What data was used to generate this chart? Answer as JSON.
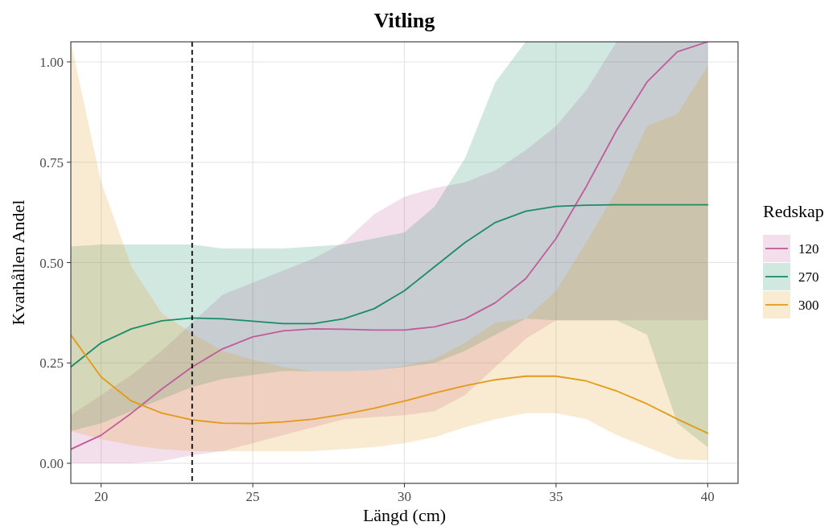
{
  "chart_data": {
    "type": "line",
    "title": "Vitling",
    "xlabel": "Längd (cm)",
    "ylabel": "Kvarhållen Andel",
    "legend_title": "Redskap",
    "legend": "right",
    "grid": true,
    "x": [
      19,
      20,
      21,
      22,
      23,
      24,
      25,
      26,
      27,
      28,
      29,
      30,
      31,
      32,
      33,
      34,
      35,
      36,
      37,
      38,
      39,
      40
    ],
    "xlim": [
      19,
      41
    ],
    "xticks": [
      20,
      25,
      30,
      35,
      40
    ],
    "ylim": [
      -0.05,
      1.05
    ],
    "yticks": [
      {
        "value": 0,
        "label": "0.00"
      },
      {
        "value": 0.25,
        "label": "0.25"
      },
      {
        "value": 0.5,
        "label": "0.50"
      },
      {
        "value": 0.75,
        "label": "0.75"
      },
      {
        "value": 1,
        "label": "1.00"
      }
    ],
    "ref_lines": [
      {
        "axis": "x",
        "value": 23,
        "label": null,
        "color": "#000000",
        "line_style": "dashed"
      }
    ],
    "series": [
      {
        "name": "120",
        "color": "#c15c9a",
        "values": [
          0.035,
          0.07,
          0.125,
          0.185,
          0.24,
          0.285,
          0.315,
          0.33,
          0.335,
          0.334,
          0.332,
          0.332,
          0.34,
          0.36,
          0.4,
          0.46,
          0.56,
          0.69,
          0.83,
          0.95,
          1.025,
          1.05
        ],
        "lower": [
          0,
          0,
          0,
          0.005,
          0.02,
          0.03,
          0.05,
          0.07,
          0.09,
          0.11,
          0.115,
          0.12,
          0.13,
          0.17,
          0.24,
          0.31,
          0.356,
          0.356,
          0.356,
          0.356,
          0.356,
          0.356
        ],
        "upper": [
          0.12,
          0.17,
          0.22,
          0.28,
          0.35,
          0.42,
          0.45,
          0.48,
          0.51,
          0.55,
          0.62,
          0.664,
          0.686,
          0.7,
          0.73,
          0.78,
          0.84,
          0.93,
          1.05,
          1.05,
          1.05,
          1.05
        ]
      },
      {
        "name": "270",
        "color": "#1b8c6a",
        "values": [
          0.24,
          0.3,
          0.335,
          0.355,
          0.362,
          0.36,
          0.354,
          0.348,
          0.348,
          0.36,
          0.385,
          0.43,
          0.49,
          0.55,
          0.6,
          0.628,
          0.64,
          0.643,
          0.644,
          0.644,
          0.644,
          0.644
        ],
        "lower": [
          0.08,
          0.1,
          0.13,
          0.16,
          0.19,
          0.21,
          0.22,
          0.23,
          0.229,
          0.229,
          0.232,
          0.24,
          0.25,
          0.28,
          0.32,
          0.36,
          0.356,
          0.356,
          0.356,
          0.32,
          0.1,
          0.04
        ],
        "upper": [
          0.54,
          0.545,
          0.545,
          0.545,
          0.545,
          0.535,
          0.535,
          0.535,
          0.54,
          0.545,
          0.56,
          0.575,
          0.64,
          0.76,
          0.95,
          1.05,
          1.05,
          1.05,
          1.05,
          1.05,
          1.05,
          1.05
        ]
      },
      {
        "name": "300",
        "color": "#e39b17",
        "values": [
          0.32,
          0.215,
          0.155,
          0.125,
          0.108,
          0.1,
          0.099,
          0.103,
          0.11,
          0.122,
          0.137,
          0.155,
          0.175,
          0.193,
          0.208,
          0.217,
          0.217,
          0.205,
          0.18,
          0.148,
          0.11,
          0.075
        ],
        "lower": [
          0.08,
          0.06,
          0.045,
          0.035,
          0.03,
          0.03,
          0.03,
          0.03,
          0.03,
          0.035,
          0.04,
          0.05,
          0.065,
          0.09,
          0.11,
          0.125,
          0.125,
          0.11,
          0.07,
          0.04,
          0.01,
          0.007
        ],
        "upper": [
          1.05,
          0.7,
          0.49,
          0.374,
          0.323,
          0.28,
          0.258,
          0.24,
          0.229,
          0.229,
          0.232,
          0.243,
          0.26,
          0.3,
          0.35,
          0.36,
          0.43,
          0.55,
          0.68,
          0.84,
          0.87,
          0.99
        ]
      }
    ]
  }
}
